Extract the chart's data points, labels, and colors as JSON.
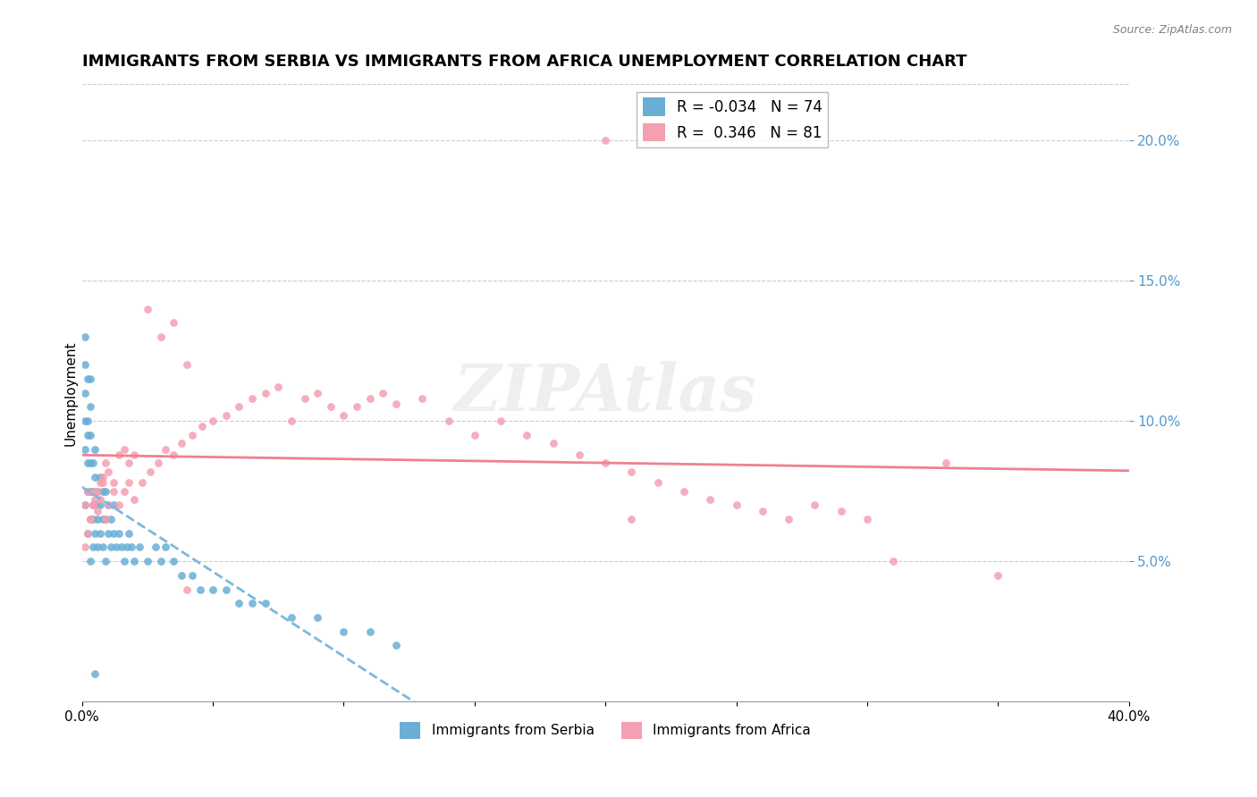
{
  "title": "IMMIGRANTS FROM SERBIA VS IMMIGRANTS FROM AFRICA UNEMPLOYMENT CORRELATION CHART",
  "source": "Source: ZipAtlas.com",
  "xlabel": "",
  "ylabel": "Unemployment",
  "xlim": [
    0.0,
    0.4
  ],
  "ylim": [
    0.0,
    0.22
  ],
  "xticks": [
    0.0,
    0.05,
    0.1,
    0.15,
    0.2,
    0.25,
    0.3,
    0.35,
    0.4
  ],
  "xticklabels": [
    "0.0%",
    "",
    "",
    "",
    "",
    "",
    "",
    "",
    "40.0%"
  ],
  "yticks_right": [
    0.05,
    0.1,
    0.15,
    0.2
  ],
  "yticklabels_right": [
    "5.0%",
    "10.0%",
    "15.0%",
    "20.0%"
  ],
  "legend_r1": "R = -0.034",
  "legend_n1": "N = 74",
  "legend_r2": "R =  0.346",
  "legend_n2": "N = 81",
  "color_serbia": "#6aaed6",
  "color_africa": "#f4a0b0",
  "color_serbia_line": "#7ab8e0",
  "color_africa_line": "#f08090",
  "watermark": "ZIPAtlas",
  "serbia_x": [
    0.001,
    0.001,
    0.001,
    0.002,
    0.002,
    0.002,
    0.002,
    0.003,
    0.003,
    0.003,
    0.003,
    0.003,
    0.004,
    0.004,
    0.004,
    0.004,
    0.005,
    0.005,
    0.005,
    0.005,
    0.006,
    0.006,
    0.006,
    0.007,
    0.007,
    0.007,
    0.008,
    0.008,
    0.008,
    0.009,
    0.009,
    0.009,
    0.01,
    0.01,
    0.011,
    0.011,
    0.012,
    0.012,
    0.013,
    0.014,
    0.015,
    0.016,
    0.017,
    0.018,
    0.019,
    0.02,
    0.022,
    0.025,
    0.028,
    0.03,
    0.032,
    0.035,
    0.038,
    0.042,
    0.045,
    0.05,
    0.055,
    0.06,
    0.065,
    0.07,
    0.08,
    0.09,
    0.1,
    0.11,
    0.12,
    0.001,
    0.001,
    0.001,
    0.002,
    0.002,
    0.003,
    0.003,
    0.004,
    0.005
  ],
  "serbia_y": [
    0.07,
    0.09,
    0.11,
    0.06,
    0.075,
    0.085,
    0.095,
    0.05,
    0.065,
    0.075,
    0.085,
    0.095,
    0.055,
    0.065,
    0.075,
    0.085,
    0.06,
    0.07,
    0.08,
    0.09,
    0.055,
    0.065,
    0.075,
    0.06,
    0.07,
    0.08,
    0.055,
    0.065,
    0.075,
    0.05,
    0.065,
    0.075,
    0.06,
    0.07,
    0.055,
    0.065,
    0.06,
    0.07,
    0.055,
    0.06,
    0.055,
    0.05,
    0.055,
    0.06,
    0.055,
    0.05,
    0.055,
    0.05,
    0.055,
    0.05,
    0.055,
    0.05,
    0.045,
    0.045,
    0.04,
    0.04,
    0.04,
    0.035,
    0.035,
    0.035,
    0.03,
    0.03,
    0.025,
    0.025,
    0.02,
    0.12,
    0.1,
    0.13,
    0.1,
    0.115,
    0.105,
    0.115,
    0.07,
    0.01
  ],
  "africa_x": [
    0.001,
    0.002,
    0.003,
    0.004,
    0.005,
    0.006,
    0.007,
    0.008,
    0.009,
    0.01,
    0.012,
    0.014,
    0.016,
    0.018,
    0.02,
    0.023,
    0.026,
    0.029,
    0.032,
    0.035,
    0.038,
    0.042,
    0.046,
    0.05,
    0.055,
    0.06,
    0.065,
    0.07,
    0.075,
    0.08,
    0.085,
    0.09,
    0.095,
    0.1,
    0.105,
    0.11,
    0.115,
    0.12,
    0.13,
    0.14,
    0.15,
    0.16,
    0.17,
    0.18,
    0.19,
    0.2,
    0.21,
    0.22,
    0.23,
    0.24,
    0.25,
    0.26,
    0.27,
    0.28,
    0.29,
    0.3,
    0.001,
    0.002,
    0.003,
    0.004,
    0.005,
    0.006,
    0.007,
    0.008,
    0.009,
    0.01,
    0.012,
    0.014,
    0.016,
    0.018,
    0.02,
    0.025,
    0.03,
    0.035,
    0.04,
    0.33,
    0.35,
    0.2,
    0.21,
    0.31,
    0.04
  ],
  "africa_y": [
    0.07,
    0.075,
    0.065,
    0.07,
    0.075,
    0.068,
    0.072,
    0.078,
    0.065,
    0.07,
    0.075,
    0.07,
    0.075,
    0.078,
    0.072,
    0.078,
    0.082,
    0.085,
    0.09,
    0.088,
    0.092,
    0.095,
    0.098,
    0.1,
    0.102,
    0.105,
    0.108,
    0.11,
    0.112,
    0.1,
    0.108,
    0.11,
    0.105,
    0.102,
    0.105,
    0.108,
    0.11,
    0.106,
    0.108,
    0.1,
    0.095,
    0.1,
    0.095,
    0.092,
    0.088,
    0.085,
    0.082,
    0.078,
    0.075,
    0.072,
    0.07,
    0.068,
    0.065,
    0.07,
    0.068,
    0.065,
    0.055,
    0.06,
    0.065,
    0.07,
    0.072,
    0.075,
    0.078,
    0.08,
    0.085,
    0.082,
    0.078,
    0.088,
    0.09,
    0.085,
    0.088,
    0.14,
    0.13,
    0.135,
    0.12,
    0.085,
    0.045,
    0.2,
    0.065,
    0.05,
    0.04
  ],
  "title_fontsize": 13,
  "axis_label_fontsize": 11,
  "tick_fontsize": 11
}
